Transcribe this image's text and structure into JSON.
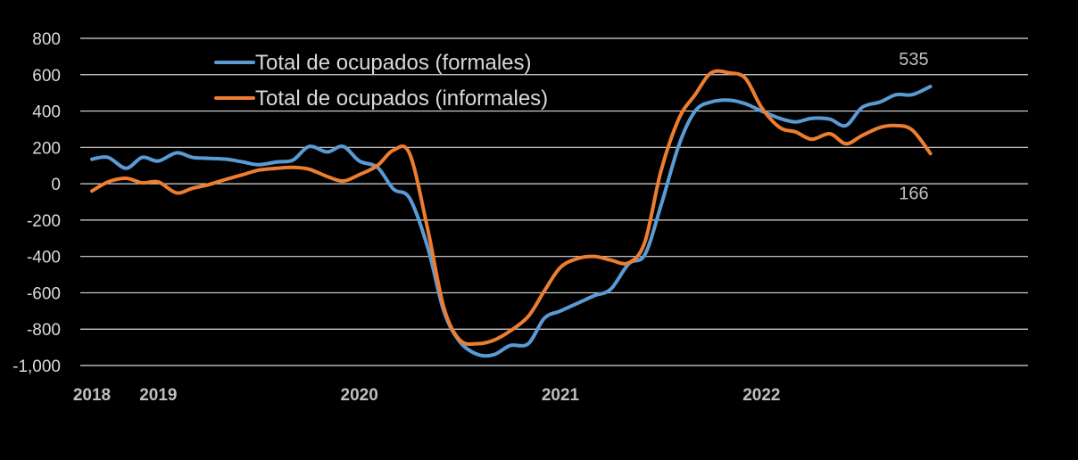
{
  "chart_data": {
    "type": "line",
    "title": "",
    "xlabel": "",
    "ylabel": "",
    "ylim": [
      -1000,
      800
    ],
    "yticks": [
      800,
      600,
      400,
      200,
      0,
      -200,
      -400,
      -600,
      -800,
      -1000
    ],
    "ytick_labels": [
      "800",
      "600",
      "400",
      "200",
      "0",
      "-200",
      "-400",
      "-600",
      "-800",
      "-1,000"
    ],
    "xlim": [
      2018.0,
      2022.58
    ],
    "xticks": [
      {
        "label": "2018",
        "x": 2018.0
      },
      {
        "label": "2019",
        "x": 2018.33
      },
      {
        "label": "2020",
        "x": 2019.33
      },
      {
        "label": "2021",
        "x": 2020.33
      },
      {
        "label": "2022",
        "x": 2021.33
      }
    ],
    "grid": true,
    "legend_position": "top-center",
    "series": [
      {
        "name": "Total de ocupados (formales)",
        "color": "#5b9bd5",
        "end_label": "535",
        "points": [
          [
            2018.0,
            135
          ],
          [
            2018.08,
            145
          ],
          [
            2018.17,
            85
          ],
          [
            2018.25,
            145
          ],
          [
            2018.33,
            125
          ],
          [
            2018.42,
            170
          ],
          [
            2018.5,
            145
          ],
          [
            2018.58,
            140
          ],
          [
            2018.67,
            135
          ],
          [
            2018.75,
            120
          ],
          [
            2018.83,
            105
          ],
          [
            2018.92,
            120
          ],
          [
            2019.0,
            130
          ],
          [
            2019.08,
            205
          ],
          [
            2019.17,
            175
          ],
          [
            2019.25,
            205
          ],
          [
            2019.33,
            125
          ],
          [
            2019.42,
            90
          ],
          [
            2019.5,
            -30
          ],
          [
            2019.58,
            -80
          ],
          [
            2019.67,
            -350
          ],
          [
            2019.75,
            -700
          ],
          [
            2019.83,
            -870
          ],
          [
            2019.92,
            -940
          ],
          [
            2020.0,
            -940
          ],
          [
            2020.08,
            -890
          ],
          [
            2020.17,
            -880
          ],
          [
            2020.25,
            -740
          ],
          [
            2020.33,
            -700
          ],
          [
            2020.42,
            -655
          ],
          [
            2020.5,
            -615
          ],
          [
            2020.58,
            -580
          ],
          [
            2020.67,
            -440
          ],
          [
            2020.75,
            -390
          ],
          [
            2020.83,
            -120
          ],
          [
            2020.92,
            215
          ],
          [
            2021.0,
            400
          ],
          [
            2021.08,
            450
          ],
          [
            2021.17,
            460
          ],
          [
            2021.25,
            440
          ],
          [
            2021.33,
            400
          ],
          [
            2021.42,
            360
          ],
          [
            2021.5,
            340
          ],
          [
            2021.58,
            360
          ],
          [
            2021.67,
            355
          ],
          [
            2021.75,
            320
          ],
          [
            2021.83,
            420
          ],
          [
            2021.92,
            450
          ],
          [
            2022.0,
            490
          ],
          [
            2022.08,
            490
          ],
          [
            2022.17,
            535
          ]
        ]
      },
      {
        "name": "Total de ocupados (informales)",
        "color": "#ed7d31",
        "end_label": "166",
        "points": [
          [
            2018.0,
            -40
          ],
          [
            2018.08,
            10
          ],
          [
            2018.17,
            30
          ],
          [
            2018.25,
            5
          ],
          [
            2018.33,
            10
          ],
          [
            2018.42,
            -50
          ],
          [
            2018.5,
            -25
          ],
          [
            2018.58,
            -5
          ],
          [
            2018.67,
            25
          ],
          [
            2018.75,
            50
          ],
          [
            2018.83,
            75
          ],
          [
            2018.92,
            85
          ],
          [
            2019.0,
            90
          ],
          [
            2019.08,
            80
          ],
          [
            2019.17,
            40
          ],
          [
            2019.25,
            15
          ],
          [
            2019.33,
            50
          ],
          [
            2019.42,
            100
          ],
          [
            2019.5,
            185
          ],
          [
            2019.58,
            165
          ],
          [
            2019.67,
            -250
          ],
          [
            2019.75,
            -680
          ],
          [
            2019.83,
            -860
          ],
          [
            2019.92,
            -880
          ],
          [
            2020.0,
            -860
          ],
          [
            2020.08,
            -810
          ],
          [
            2020.17,
            -730
          ],
          [
            2020.25,
            -590
          ],
          [
            2020.33,
            -460
          ],
          [
            2020.42,
            -410
          ],
          [
            2020.5,
            -400
          ],
          [
            2020.58,
            -420
          ],
          [
            2020.67,
            -435
          ],
          [
            2020.75,
            -320
          ],
          [
            2020.83,
            70
          ],
          [
            2020.92,
            360
          ],
          [
            2021.0,
            490
          ],
          [
            2021.08,
            610
          ],
          [
            2021.17,
            610
          ],
          [
            2021.25,
            580
          ],
          [
            2021.33,
            420
          ],
          [
            2021.42,
            310
          ],
          [
            2021.5,
            285
          ],
          [
            2021.58,
            245
          ],
          [
            2021.67,
            275
          ],
          [
            2021.75,
            220
          ],
          [
            2021.83,
            265
          ],
          [
            2021.92,
            310
          ],
          [
            2022.0,
            320
          ],
          [
            2022.08,
            295
          ],
          [
            2022.17,
            166
          ]
        ]
      }
    ]
  }
}
